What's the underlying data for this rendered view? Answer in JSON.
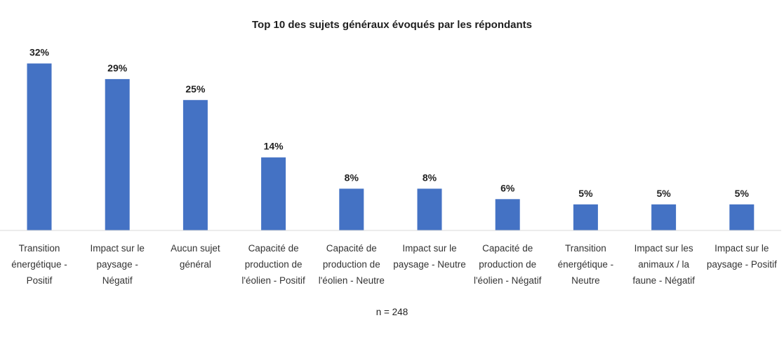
{
  "chart_data": {
    "type": "bar",
    "title": "Top 10 des sujets généraux évoqués par les répondants",
    "categories": [
      [
        "Transition",
        "énergétique -",
        "Positif"
      ],
      [
        "Impact sur le",
        "paysage -",
        "Négatif"
      ],
      [
        "Aucun sujet",
        "général"
      ],
      [
        "Capacité de",
        "production de",
        "l'éolien - Positif"
      ],
      [
        "Capacité de",
        "production de",
        "l'éolien - Neutre"
      ],
      [
        "Impact sur le",
        "paysage - Neutre"
      ],
      [
        "Capacité de",
        "production de",
        "l'éolien - Négatif"
      ],
      [
        "Transition",
        "énergétique -",
        "Neutre"
      ],
      [
        "Impact sur les",
        "animaux / la",
        "faune - Négatif"
      ],
      [
        "Impact sur le",
        "paysage - Positif"
      ]
    ],
    "values": [
      32,
      29,
      25,
      14,
      8,
      8,
      6,
      5,
      5,
      5
    ],
    "value_labels": [
      "32%",
      "29%",
      "25%",
      "14%",
      "8%",
      "8%",
      "6%",
      "5%",
      "5%",
      "5%"
    ],
    "unit": "%",
    "ylim": [
      0,
      33
    ],
    "grid": false,
    "bar_color": "#4472C4",
    "note": "n = 248"
  }
}
